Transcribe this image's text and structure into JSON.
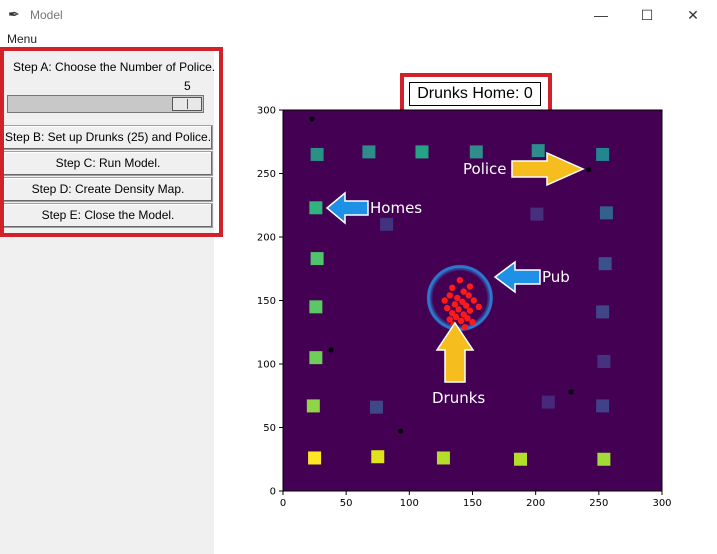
{
  "window": {
    "title": "Model",
    "minimize_glyph": "—",
    "maximize_glyph": "☐",
    "close_glyph": "✕",
    "app_icon": "feather-icon"
  },
  "menubar": {
    "menu_label": "Menu"
  },
  "controls": {
    "step_a_label": "Step A: Choose the Number of Police.",
    "police_count": "5",
    "police_count_value": 5,
    "slider_range": [
      1,
      5
    ],
    "step_b": "Step B: Set up Drunks (25) and Police.",
    "step_c": "Step C: Run Model.",
    "step_d": "Step D: Create Density Map.",
    "step_e": "Step E: Close the Model."
  },
  "status": {
    "drunks_home": "Drunks Home: 0"
  },
  "annotations": {
    "police": "Police",
    "homes": "Homes",
    "pub": "Pub",
    "drunks": "Drunks",
    "highlight_color": "#d3212a",
    "arrow_blue": "#1e90e6",
    "arrow_yellow": "#f5be1e"
  },
  "plot": {
    "background": "#440154",
    "xlim": [
      0,
      300
    ],
    "ylim": [
      0,
      300
    ],
    "x_ticks": [
      "0",
      "50",
      "100",
      "150",
      "200",
      "250",
      "300"
    ],
    "y_ticks": [
      "0",
      "50",
      "100",
      "150",
      "200",
      "250",
      "300"
    ],
    "homes": [
      {
        "x": 27,
        "y": 265,
        "color": "#2a9187"
      },
      {
        "x": 68,
        "y": 267,
        "color": "#2e8c8b"
      },
      {
        "x": 110,
        "y": 267,
        "color": "#26a384"
      },
      {
        "x": 153,
        "y": 267,
        "color": "#2f8d8a"
      },
      {
        "x": 202,
        "y": 268,
        "color": "#2d8c8c"
      },
      {
        "x": 253,
        "y": 265,
        "color": "#23858e"
      },
      {
        "x": 26,
        "y": 223,
        "color": "#2fb47c"
      },
      {
        "x": 82,
        "y": 210,
        "color": "#43337f"
      },
      {
        "x": 201,
        "y": 218,
        "color": "#46307e"
      },
      {
        "x": 256,
        "y": 219,
        "color": "#33618d"
      },
      {
        "x": 27,
        "y": 183,
        "color": "#50c46a"
      },
      {
        "x": 255,
        "y": 179,
        "color": "#3b518b"
      },
      {
        "x": 26,
        "y": 145,
        "color": "#5ac864"
      },
      {
        "x": 253,
        "y": 141,
        "color": "#404688"
      },
      {
        "x": 26,
        "y": 105,
        "color": "#6ece58"
      },
      {
        "x": 254,
        "y": 102,
        "color": "#46337f"
      },
      {
        "x": 24,
        "y": 67,
        "color": "#8ed645"
      },
      {
        "x": 74,
        "y": 66,
        "color": "#3f4788"
      },
      {
        "x": 210,
        "y": 70,
        "color": "#48287b"
      },
      {
        "x": 253,
        "y": 67,
        "color": "#424086"
      },
      {
        "x": 25,
        "y": 26,
        "color": "#fde725"
      },
      {
        "x": 75,
        "y": 27,
        "color": "#e0e21c"
      },
      {
        "x": 127,
        "y": 26,
        "color": "#b5de2b"
      },
      {
        "x": 188,
        "y": 25,
        "color": "#b5de2b"
      },
      {
        "x": 254,
        "y": 25,
        "color": "#a2da37"
      }
    ],
    "police": [
      {
        "x": 23,
        "y": 293
      },
      {
        "x": 242,
        "y": 253
      },
      {
        "x": 38,
        "y": 111
      },
      {
        "x": 228,
        "y": 78
      },
      {
        "x": 93,
        "y": 47
      }
    ],
    "pub": {
      "x": 140,
      "y": 152,
      "r": 25
    },
    "drunks": [
      {
        "x": 140,
        "y": 166
      },
      {
        "x": 148,
        "y": 161
      },
      {
        "x": 134,
        "y": 160
      },
      {
        "x": 143,
        "y": 157
      },
      {
        "x": 132,
        "y": 154
      },
      {
        "x": 147,
        "y": 154
      },
      {
        "x": 138,
        "y": 152
      },
      {
        "x": 151,
        "y": 150
      },
      {
        "x": 128,
        "y": 150
      },
      {
        "x": 142,
        "y": 149
      },
      {
        "x": 136,
        "y": 147
      },
      {
        "x": 145,
        "y": 146
      },
      {
        "x": 155,
        "y": 145
      },
      {
        "x": 130,
        "y": 144
      },
      {
        "x": 139,
        "y": 143
      },
      {
        "x": 148,
        "y": 142
      },
      {
        "x": 134,
        "y": 140
      },
      {
        "x": 143,
        "y": 139
      },
      {
        "x": 137,
        "y": 137
      },
      {
        "x": 146,
        "y": 136
      },
      {
        "x": 132,
        "y": 135
      },
      {
        "x": 141,
        "y": 134
      },
      {
        "x": 150,
        "y": 133
      },
      {
        "x": 135,
        "y": 131
      },
      {
        "x": 144,
        "y": 129
      }
    ]
  }
}
